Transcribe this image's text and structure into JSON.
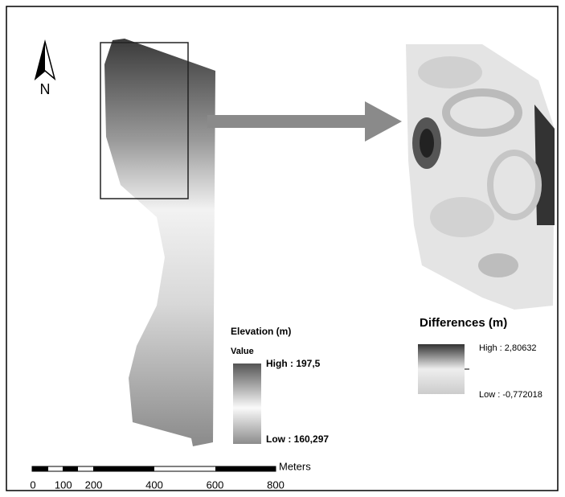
{
  "north_arrow": {
    "label": "N"
  },
  "elevation_legend": {
    "title": "Elevation (m)",
    "value_label": "Value",
    "high": "High : 197,5",
    "low": "Low : 160,297"
  },
  "differences_legend": {
    "title": "Differences (m)",
    "high": "High : 2,80632",
    "low": "Low : -0,772018"
  },
  "scale_bar": {
    "unit": "Meters",
    "ticks": [
      0,
      100,
      200,
      400,
      600,
      800
    ]
  }
}
